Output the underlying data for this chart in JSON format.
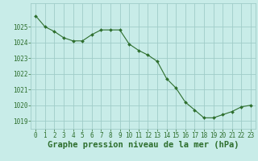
{
  "x": [
    0,
    1,
    2,
    3,
    4,
    5,
    6,
    7,
    8,
    9,
    10,
    11,
    12,
    13,
    14,
    15,
    16,
    17,
    18,
    19,
    20,
    21,
    22,
    23
  ],
  "y": [
    1025.7,
    1025.0,
    1024.7,
    1024.3,
    1024.1,
    1024.1,
    1024.5,
    1024.8,
    1024.8,
    1024.8,
    1023.9,
    1023.5,
    1023.2,
    1022.8,
    1021.7,
    1021.1,
    1020.2,
    1019.7,
    1019.2,
    1019.2,
    1019.4,
    1019.6,
    1019.9,
    1020.0
  ],
  "line_color": "#2d6e2d",
  "marker_color": "#2d6e2d",
  "bg_color": "#c8ece8",
  "grid_color": "#a0ccc8",
  "xlabel": "Graphe pression niveau de la mer (hPa)",
  "xlabel_color": "#2d6e2d",
  "ylim_min": 1018.5,
  "ylim_max": 1026.5,
  "yticks": [
    1019,
    1020,
    1021,
    1022,
    1023,
    1024,
    1025
  ],
  "xticks": [
    0,
    1,
    2,
    3,
    4,
    5,
    6,
    7,
    8,
    9,
    10,
    11,
    12,
    13,
    14,
    15,
    16,
    17,
    18,
    19,
    20,
    21,
    22,
    23
  ],
  "tick_color": "#2d6e2d",
  "tick_fontsize": 5.5,
  "xlabel_fontsize": 7.5
}
